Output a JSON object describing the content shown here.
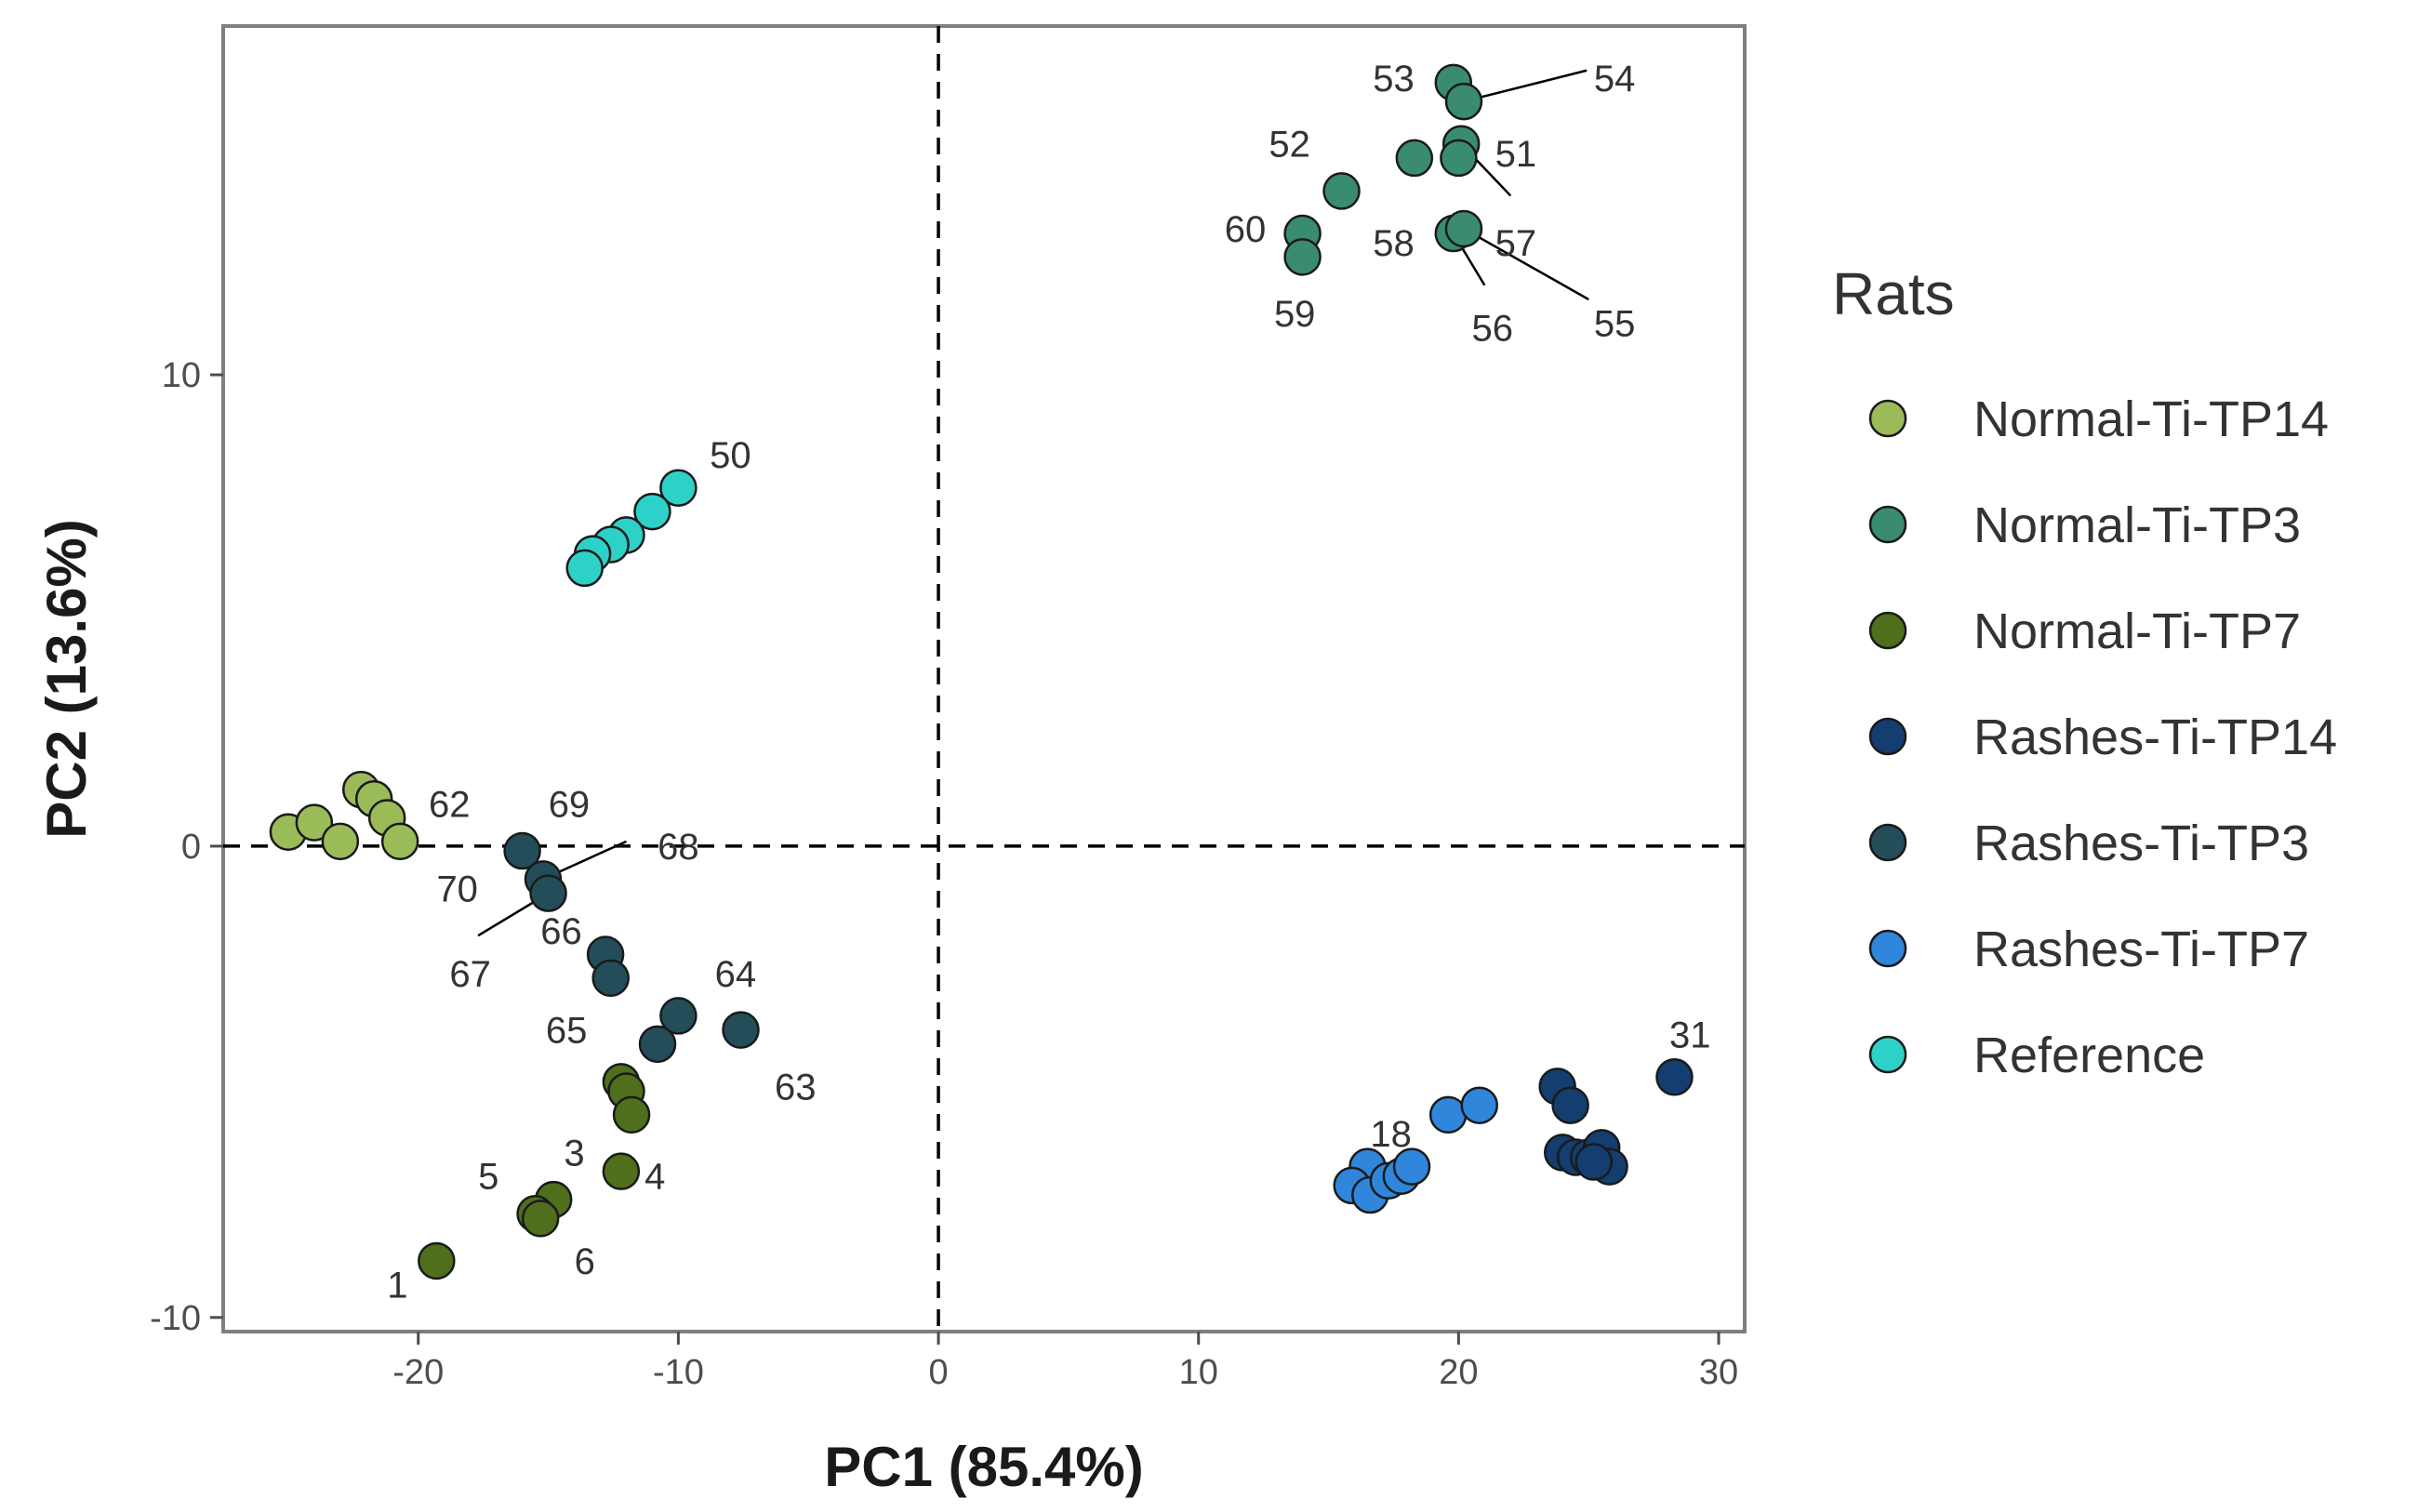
{
  "chart_data": {
    "type": "scatter",
    "title": "",
    "xlabel": "PC1 (85.4%)",
    "ylabel": "PC2 (13.6%)",
    "xlim": [
      -27.5,
      31
    ],
    "ylim": [
      -10.3,
      17.4
    ],
    "xticks": [
      -20,
      -10,
      0,
      10,
      20,
      30
    ],
    "yticks": [
      -10,
      0,
      10
    ],
    "reference_lines": {
      "x": 0,
      "y": 0,
      "style": "dashed"
    },
    "legend": {
      "title": "Rats",
      "position": "right"
    },
    "series": [
      {
        "name": "Normal-Ti-TP14",
        "color": "#9bbb59",
        "points": [
          {
            "x": -25.0,
            "y": 0.3
          },
          {
            "x": -24.0,
            "y": 0.5
          },
          {
            "x": -23.0,
            "y": 0.1
          },
          {
            "x": -22.2,
            "y": 1.2
          },
          {
            "x": -21.7,
            "y": 1.0
          },
          {
            "x": -21.2,
            "y": 0.6
          },
          {
            "x": -20.7,
            "y": 0.1
          }
        ]
      },
      {
        "name": "Normal-Ti-TP3",
        "color": "#3a8c6e",
        "points": [
          {
            "x": 19.8,
            "y": 16.2
          },
          {
            "x": 20.2,
            "y": 15.8
          },
          {
            "x": 18.3,
            "y": 14.6
          },
          {
            "x": 20.1,
            "y": 14.9
          },
          {
            "x": 20.0,
            "y": 14.6
          },
          {
            "x": 15.5,
            "y": 13.9
          },
          {
            "x": 14.0,
            "y": 13.0
          },
          {
            "x": 14.0,
            "y": 12.5
          },
          {
            "x": 19.8,
            "y": 13.0
          },
          {
            "x": 20.2,
            "y": 13.1
          }
        ]
      },
      {
        "name": "Normal-Ti-TP7",
        "color": "#4f6f1c",
        "points": [
          {
            "x": -12.2,
            "y": -5.0
          },
          {
            "x": -12.0,
            "y": -5.2
          },
          {
            "x": -11.8,
            "y": -5.7
          },
          {
            "x": -12.2,
            "y": -6.9
          },
          {
            "x": -14.8,
            "y": -7.5
          },
          {
            "x": -15.5,
            "y": -7.8
          },
          {
            "x": -15.3,
            "y": -7.9
          },
          {
            "x": -19.3,
            "y": -8.8
          }
        ]
      },
      {
        "name": "Rashes-Ti-TP14",
        "color": "#143d70",
        "points": [
          {
            "x": 28.3,
            "y": -4.9
          },
          {
            "x": 23.8,
            "y": -5.1
          },
          {
            "x": 24.3,
            "y": -5.5
          },
          {
            "x": 24.0,
            "y": -6.5
          },
          {
            "x": 24.5,
            "y": -6.6
          },
          {
            "x": 25.0,
            "y": -6.6
          },
          {
            "x": 25.5,
            "y": -6.4
          },
          {
            "x": 25.8,
            "y": -6.8
          },
          {
            "x": 25.2,
            "y": -6.7
          }
        ]
      },
      {
        "name": "Rashes-Ti-TP3",
        "color": "#234e59",
        "points": [
          {
            "x": -16.0,
            "y": -0.1
          },
          {
            "x": -15.2,
            "y": -0.7
          },
          {
            "x": -15.0,
            "y": -1.0
          },
          {
            "x": -12.8,
            "y": -2.3
          },
          {
            "x": -12.6,
            "y": -2.8
          },
          {
            "x": -10.0,
            "y": -3.6
          },
          {
            "x": -10.8,
            "y": -4.2
          },
          {
            "x": -7.6,
            "y": -3.9
          }
        ]
      },
      {
        "name": "Rashes-Ti-TP7",
        "color": "#2f86db",
        "points": [
          {
            "x": 16.5,
            "y": -6.8
          },
          {
            "x": 15.9,
            "y": -7.2
          },
          {
            "x": 16.6,
            "y": -7.4
          },
          {
            "x": 17.3,
            "y": -7.1
          },
          {
            "x": 17.8,
            "y": -7.0
          },
          {
            "x": 18.2,
            "y": -6.8
          },
          {
            "x": 19.6,
            "y": -5.7
          },
          {
            "x": 20.8,
            "y": -5.5
          }
        ]
      },
      {
        "name": "Reference",
        "color": "#2ed1c8",
        "points": [
          {
            "x": -10.0,
            "y": 7.6
          },
          {
            "x": -11.0,
            "y": 7.1
          },
          {
            "x": -12.0,
            "y": 6.6
          },
          {
            "x": -12.6,
            "y": 6.4
          },
          {
            "x": -13.3,
            "y": 6.2
          },
          {
            "x": -13.6,
            "y": 5.9
          }
        ]
      }
    ],
    "point_labels": [
      {
        "text": "53",
        "x": 17.5,
        "y": 16.3
      },
      {
        "text": "54",
        "x": 26.0,
        "y": 16.3,
        "leader_to": {
          "x": 20.2,
          "y": 15.8
        }
      },
      {
        "text": "52",
        "x": 13.5,
        "y": 14.9
      },
      {
        "text": "51",
        "x": 22.2,
        "y": 14.7,
        "leader_to": {
          "x": 20.1,
          "y": 14.9
        },
        "leader_from": {
          "x": 22.0,
          "y": 13.8
        }
      },
      {
        "text": "60",
        "x": 11.8,
        "y": 13.1
      },
      {
        "text": "58",
        "x": 17.5,
        "y": 12.8
      },
      {
        "text": "57",
        "x": 22.2,
        "y": 12.8
      },
      {
        "text": "59",
        "x": 13.7,
        "y": 11.3
      },
      {
        "text": "56",
        "x": 21.3,
        "y": 11.0,
        "leader_to": {
          "x": 19.8,
          "y": 13.0
        },
        "leader_from": {
          "x": 21.0,
          "y": 11.9
        }
      },
      {
        "text": "55",
        "x": 26.0,
        "y": 11.1,
        "leader_to": {
          "x": 20.2,
          "y": 13.1
        },
        "leader_from": {
          "x": 25.0,
          "y": 11.6
        }
      },
      {
        "text": "50",
        "x": -8.0,
        "y": 8.3
      },
      {
        "text": "62",
        "x": -18.8,
        "y": 0.9
      },
      {
        "text": "69",
        "x": -14.2,
        "y": 0.9
      },
      {
        "text": "68",
        "x": -10.0,
        "y": 0.0,
        "leader_to": {
          "x": -15.2,
          "y": -0.7
        },
        "leader_from": {
          "x": -12.0,
          "y": 0.1
        }
      },
      {
        "text": "70",
        "x": -18.5,
        "y": -0.9
      },
      {
        "text": "66",
        "x": -14.5,
        "y": -1.8
      },
      {
        "text": "67",
        "x": -18.0,
        "y": -2.7,
        "leader_to": {
          "x": -15.0,
          "y": -1.0
        },
        "leader_from": {
          "x": -17.7,
          "y": -1.9
        }
      },
      {
        "text": "64",
        "x": -7.8,
        "y": -2.7
      },
      {
        "text": "65",
        "x": -14.3,
        "y": -3.9
      },
      {
        "text": "63",
        "x": -5.5,
        "y": -5.1
      },
      {
        "text": "3",
        "x": -14.0,
        "y": -6.5
      },
      {
        "text": "5",
        "x": -17.3,
        "y": -7.0
      },
      {
        "text": "4",
        "x": -10.9,
        "y": -7.0
      },
      {
        "text": "6",
        "x": -13.6,
        "y": -8.8
      },
      {
        "text": "1",
        "x": -20.8,
        "y": -9.3
      },
      {
        "text": "18",
        "x": 17.4,
        "y": -6.1
      },
      {
        "text": "31",
        "x": 28.9,
        "y": -4.0
      }
    ]
  }
}
